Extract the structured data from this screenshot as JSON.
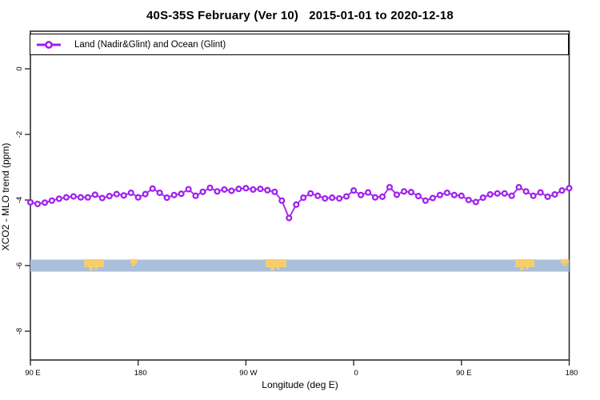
{
  "title": "40S-35S February (Ver 10)   2015-01-01 to 2020-12-18",
  "legend": {
    "label": "Land (Nadir&Glint) and Ocean (Glint)"
  },
  "axes": {
    "x": {
      "label": "Longitude (deg E)",
      "ticks": [
        {
          "pos": 90,
          "label": "90 E"
        },
        {
          "pos": 180,
          "label": "180"
        },
        {
          "pos": 270,
          "label": "90 W"
        },
        {
          "pos": 360,
          "label": "0"
        },
        {
          "pos": 450,
          "label": "90 E"
        },
        {
          "pos": 540,
          "label": "180"
        }
      ]
    },
    "y": {
      "label": "XCO2 - MLO trend (ppm)",
      "ticks": [
        {
          "val": 0,
          "label": "0"
        },
        {
          "val": -2,
          "label": "-2"
        },
        {
          "val": -4,
          "label": "-4"
        },
        {
          "val": -6,
          "label": "-6"
        },
        {
          "val": -8,
          "label": "-8"
        }
      ]
    }
  },
  "chart_data": {
    "type": "line",
    "title": "40S-35S February (Ver 10)   2015-01-01 to 2020-12-18",
    "xlabel": "Longitude (deg E)",
    "ylabel": "XCO2 - MLO trend (ppm)",
    "legend_position": "top-left-full-width",
    "grid": false,
    "series_name": "Land (Nadir&Glint) and Ocean (Glint)",
    "marker": "open-circle",
    "line_color": "#A020F0",
    "axis_color": "#2e2e2e",
    "x_axis": {
      "start": 90,
      "span": 450,
      "note": "longitude wraps eastward: 90E to 180, 90W, 0, 90E, 180"
    },
    "ylim": [
      -8.9,
      1.15
    ],
    "x": [
      90,
      96,
      102,
      108,
      114,
      120,
      126,
      132,
      138,
      144,
      150,
      156,
      162,
      168,
      174,
      180,
      186,
      192,
      198,
      204,
      210,
      216,
      222,
      228,
      234,
      240,
      246,
      252,
      258,
      264,
      270,
      276,
      282,
      288,
      294,
      300,
      306,
      312,
      318,
      324,
      330,
      336,
      342,
      348,
      354,
      360,
      366,
      372,
      378,
      384,
      390,
      396,
      402,
      408,
      414,
      420,
      426,
      432,
      438,
      444,
      450,
      456,
      462,
      468,
      474,
      480,
      486,
      492,
      498,
      504,
      510,
      516,
      522,
      528,
      534,
      540
    ],
    "values": [
      -4.07,
      -4.12,
      -4.08,
      -4.02,
      -3.96,
      -3.92,
      -3.89,
      -3.92,
      -3.92,
      -3.84,
      -3.94,
      -3.88,
      -3.82,
      -3.86,
      -3.78,
      -3.92,
      -3.82,
      -3.65,
      -3.78,
      -3.93,
      -3.85,
      -3.81,
      -3.67,
      -3.87,
      -3.75,
      -3.63,
      -3.74,
      -3.68,
      -3.72,
      -3.66,
      -3.64,
      -3.68,
      -3.66,
      -3.7,
      -3.75,
      -4.02,
      -4.55,
      -4.14,
      -3.93,
      -3.8,
      -3.87,
      -3.95,
      -3.93,
      -3.95,
      -3.89,
      -3.71,
      -3.85,
      -3.77,
      -3.92,
      -3.9,
      -3.61,
      -3.84,
      -3.74,
      -3.76,
      -3.88,
      -4.02,
      -3.94,
      -3.85,
      -3.78,
      -3.85,
      -3.87,
      -4.0,
      -4.06,
      -3.93,
      -3.83,
      -3.8,
      -3.8,
      -3.87,
      -3.61,
      -3.74,
      -3.87,
      -3.77,
      -3.9,
      -3.83,
      -3.71,
      -3.64
    ],
    "map_band": {
      "description": "horizontal world-map strip centered at y = -6 ppm",
      "ocean_color": "#A9BFDB",
      "land_color": "#F6CE6E",
      "center_value": -6,
      "land_patches": [
        {
          "name": "Australia",
          "from": 135.0,
          "to": 151.3
        },
        {
          "name": "New Zealand",
          "from": 173.2,
          "to": 179.3
        },
        {
          "name": "South America",
          "from": 286.3,
          "to": 303.7
        },
        {
          "name": "Australia",
          "from": 495.0,
          "to": 511.0
        },
        {
          "name": "New Zealand",
          "from": 533.0,
          "to": 539.5
        }
      ]
    }
  }
}
